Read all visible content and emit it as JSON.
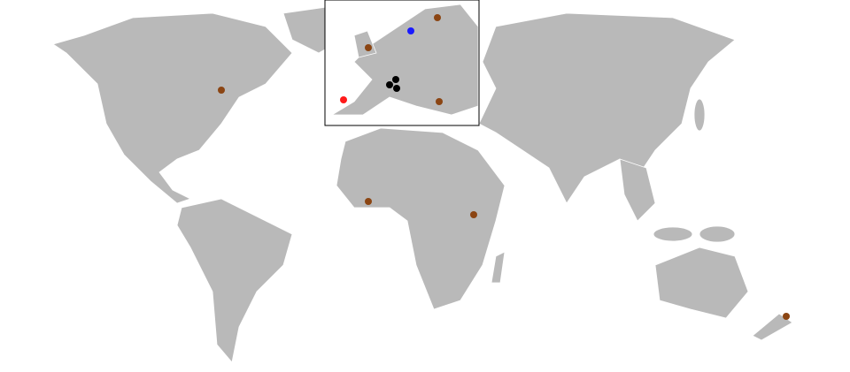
{
  "map": {
    "markers": [
      {
        "color": "#8b4513"
      },
      {
        "color": "#8b4513"
      },
      {
        "color": "#8b4513"
      },
      {
        "color": "#8b4513"
      },
      {
        "color": "#8b4513"
      },
      {
        "color": "#8b4513"
      },
      {
        "color": "#8b4513"
      },
      {
        "color": "#1a1aff"
      },
      {
        "color": "#ff1a1a"
      },
      {
        "color": "#000000"
      },
      {
        "color": "#000000"
      },
      {
        "color": "#000000"
      }
    ]
  }
}
